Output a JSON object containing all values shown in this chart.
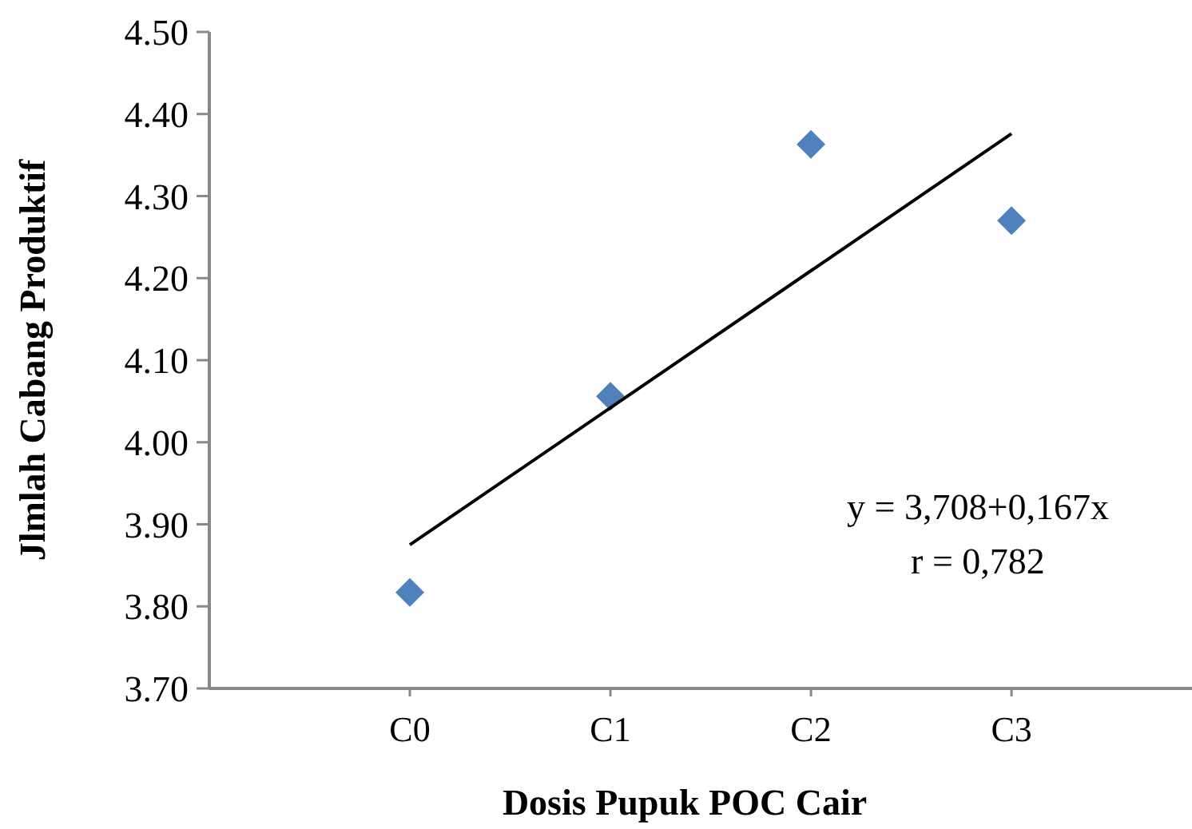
{
  "chart_data": {
    "type": "scatter",
    "xlabel": "Dosis Pupuk  POC Cair",
    "ylabel": "Jlmlah Cabang Produktif",
    "categories": [
      "C0",
      "C1",
      "C2",
      "C3"
    ],
    "ylim": [
      3.7,
      4.5
    ],
    "yticks": [
      {
        "value": 3.7,
        "label": "3.70"
      },
      {
        "value": 3.8,
        "label": "3.80"
      },
      {
        "value": 3.9,
        "label": "3.90"
      },
      {
        "value": 4.0,
        "label": "4.00"
      },
      {
        "value": 4.1,
        "label": "4.10"
      },
      {
        "value": 4.2,
        "label": "4.20"
      },
      {
        "value": 4.3,
        "label": "4.30"
      },
      {
        "value": 4.4,
        "label": "4.40"
      },
      {
        "value": 4.5,
        "label": "4.50"
      }
    ],
    "marker": "diamond",
    "series": [
      {
        "color": "#4f81bd",
        "values": [
          3.817,
          4.056,
          4.363,
          4.27
        ]
      },
      {
        "type": "line",
        "color": "#000000",
        "values": [
          3.875,
          4.042,
          4.209,
          4.376
        ],
        "marker": "none",
        "line_style": "solid"
      }
    ],
    "annotations": [
      "y = 3,708+0,167x",
      "r = 0,782"
    ]
  }
}
